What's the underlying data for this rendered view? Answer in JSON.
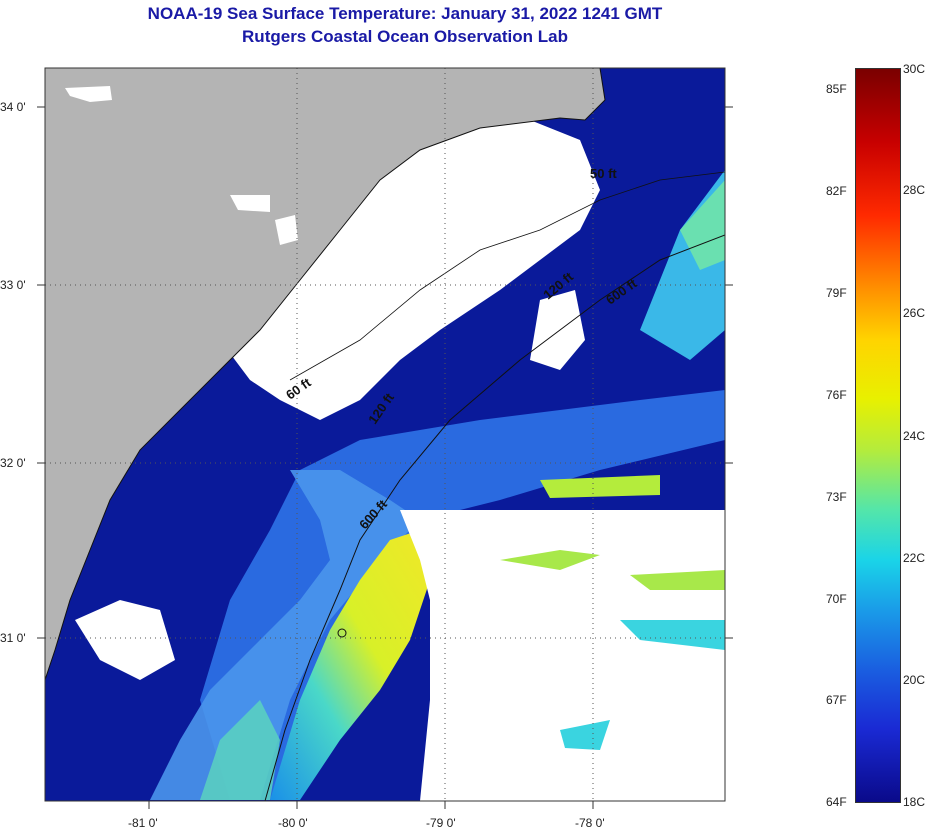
{
  "title": {
    "line1": "NOAA-19 Sea Surface Temperature:  January 31, 2022 1241 GMT",
    "line2": "Rutgers Coastal Ocean Observation Lab"
  },
  "map": {
    "lat_labels": [
      "34 0'",
      "33 0'",
      "32 0'",
      "31 0'"
    ],
    "lon_labels": [
      "-81 0'",
      "-80 0'",
      "-79 0'",
      "-78 0'"
    ],
    "isobath_labels": [
      "50 ft",
      "120 ft",
      "600 ft",
      "60 ft",
      "120 ft",
      "600 ft"
    ],
    "colors": {
      "land": "#b4b4b4",
      "cloud": "#ffffff",
      "cold_water": "#0a1a9a",
      "mid_water": "#2a7ae8",
      "warm_water": "#e8f020"
    }
  },
  "colorbar": {
    "fahrenheit": [
      "85F",
      "82F",
      "79F",
      "76F",
      "73F",
      "70F",
      "67F",
      "64F"
    ],
    "celsius": [
      "30C",
      "28C",
      "26C",
      "24C",
      "22C",
      "20C",
      "18C"
    ]
  }
}
